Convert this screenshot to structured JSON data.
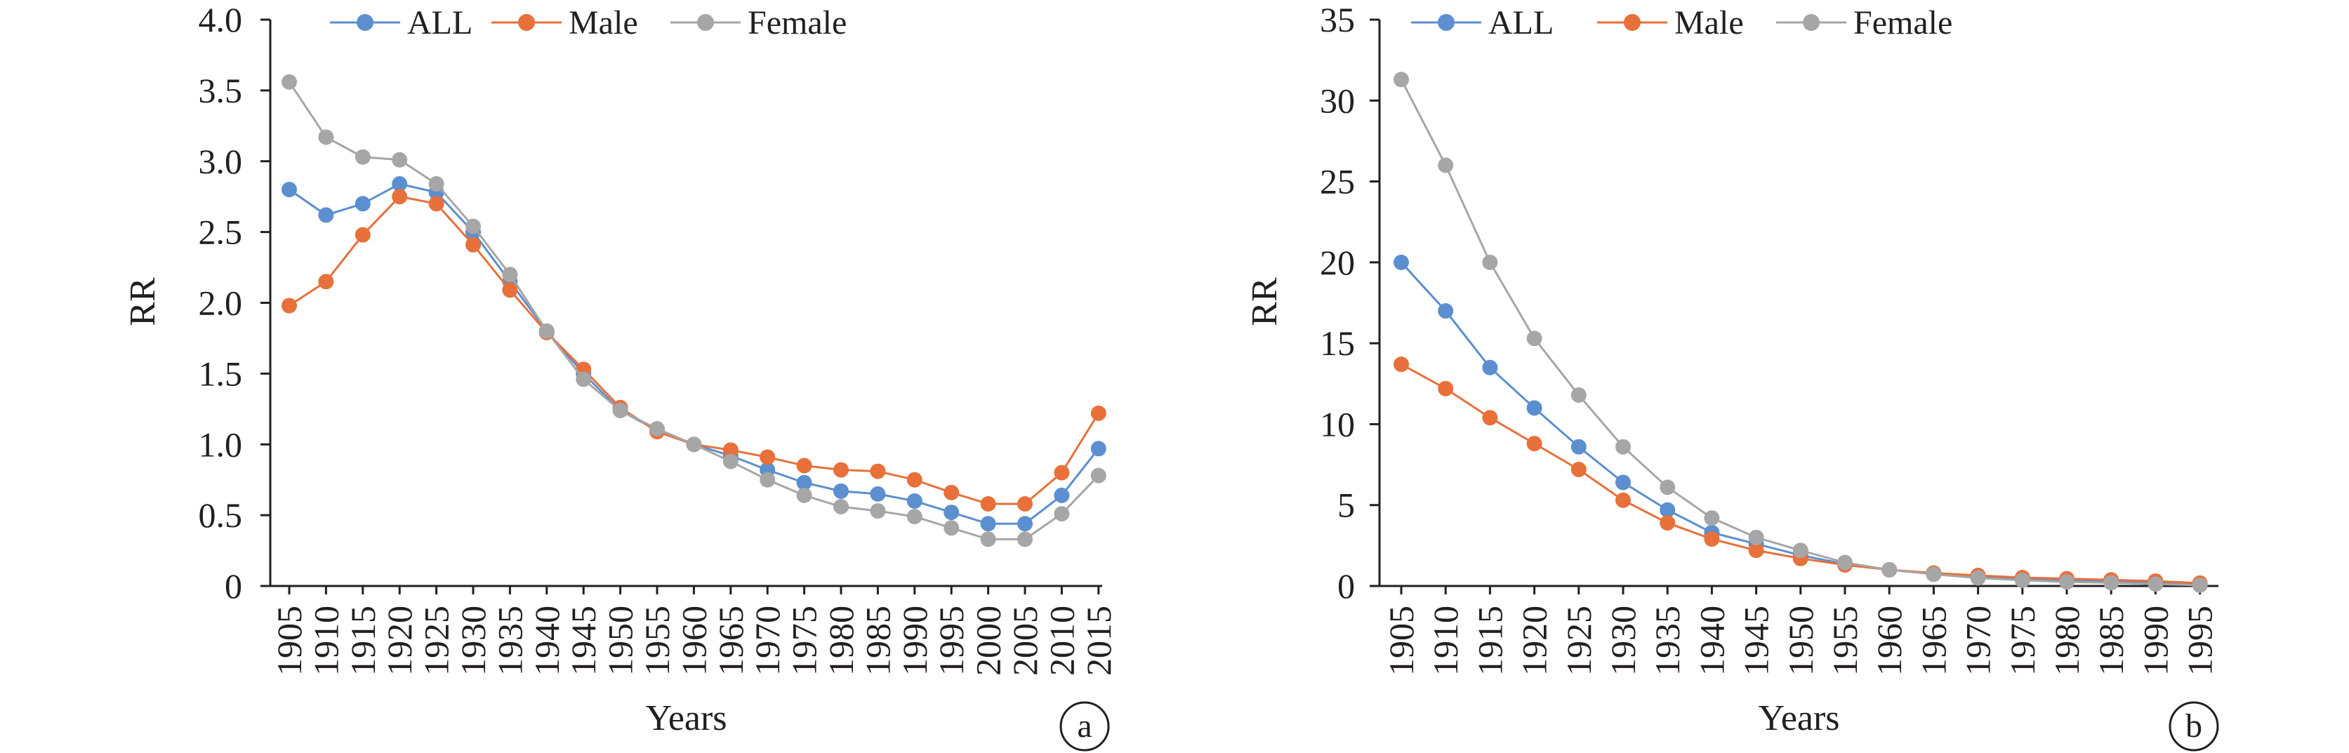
{
  "chart_data": [
    {
      "type": "line",
      "panel_tag": "a",
      "xlabel": "Years",
      "ylabel": "RR",
      "categories": [
        "1905",
        "1910",
        "1915",
        "1920",
        "1925",
        "1930",
        "1935",
        "1940",
        "1945",
        "1950",
        "1955",
        "1960",
        "1965",
        "1970",
        "1975",
        "1980",
        "1985",
        "1990",
        "1995",
        "2000",
        "2005",
        "2010",
        "2015"
      ],
      "ylim": [
        0,
        4.0
      ],
      "yticks": [
        "0",
        "0.5",
        "1.0",
        "1.5",
        "2.0",
        "2.5",
        "3.0",
        "3.5",
        "4.0"
      ],
      "legend_position": "top",
      "grid": false,
      "series": [
        {
          "name": "ALL",
          "color": "#5b8fcf",
          "values": [
            2.8,
            2.62,
            2.7,
            2.84,
            2.78,
            2.5,
            2.15,
            1.8,
            1.5,
            1.24,
            1.1,
            1.0,
            0.92,
            0.82,
            0.73,
            0.67,
            0.65,
            0.6,
            0.52,
            0.44,
            0.44,
            0.64,
            0.97
          ]
        },
        {
          "name": "Male",
          "color": "#e8703a",
          "values": [
            1.98,
            2.15,
            2.48,
            2.75,
            2.7,
            2.41,
            2.09,
            1.79,
            1.53,
            1.26,
            1.09,
            1.0,
            0.96,
            0.91,
            0.85,
            0.82,
            0.81,
            0.75,
            0.66,
            0.58,
            0.58,
            0.8,
            1.22
          ]
        },
        {
          "name": "Female",
          "color": "#a6a6a6",
          "values": [
            3.56,
            3.17,
            3.03,
            3.01,
            2.84,
            2.54,
            2.2,
            1.8,
            1.46,
            1.24,
            1.11,
            1.0,
            0.88,
            0.75,
            0.64,
            0.56,
            0.53,
            0.49,
            0.41,
            0.33,
            0.33,
            0.51,
            0.78
          ]
        }
      ]
    },
    {
      "type": "line",
      "panel_tag": "b",
      "xlabel": "Years",
      "ylabel": "RR",
      "categories": [
        "1905",
        "1910",
        "1915",
        "1920",
        "1925",
        "1930",
        "1935",
        "1940",
        "1945",
        "1950",
        "1955",
        "1960",
        "1965",
        "1970",
        "1975",
        "1980",
        "1985",
        "1990",
        "1995"
      ],
      "ylim": [
        0,
        35
      ],
      "yticks": [
        "0",
        "5",
        "10",
        "15",
        "20",
        "25",
        "30",
        "35"
      ],
      "legend_position": "top",
      "grid": false,
      "series": [
        {
          "name": "ALL",
          "color": "#5b8fcf",
          "values": [
            20.0,
            17.0,
            13.5,
            11.0,
            8.6,
            6.4,
            4.7,
            3.3,
            2.6,
            1.9,
            1.35,
            1.0,
            0.75,
            0.58,
            0.45,
            0.35,
            0.3,
            0.22,
            0.12
          ]
        },
        {
          "name": "Male",
          "color": "#e8703a",
          "values": [
            13.7,
            12.2,
            10.4,
            8.8,
            7.2,
            5.3,
            3.9,
            2.9,
            2.2,
            1.7,
            1.3,
            1.0,
            0.8,
            0.65,
            0.52,
            0.45,
            0.38,
            0.3,
            0.18
          ]
        },
        {
          "name": "Female",
          "color": "#a6a6a6",
          "values": [
            31.3,
            26.0,
            20.0,
            15.3,
            11.8,
            8.6,
            6.1,
            4.2,
            3.0,
            2.2,
            1.45,
            1.0,
            0.72,
            0.5,
            0.35,
            0.25,
            0.2,
            0.12,
            0.05
          ]
        }
      ]
    }
  ]
}
